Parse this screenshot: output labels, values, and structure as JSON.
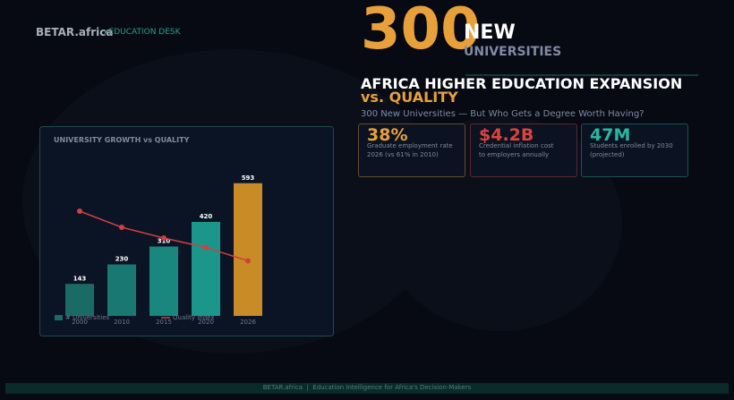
{
  "header": {
    "brand": "BETAR.africa",
    "desk": "▸EDUCATION DESK"
  },
  "hero": {
    "number": "300",
    "word": "NEW",
    "sub": "UNIVERSITIES"
  },
  "title": {
    "line1": "AFRICA HIGHER EDUCATION EXPANSION",
    "line2": "vs. QUALITY"
  },
  "subtitle": "300 New Universities — But Who Gets a Degree Worth Having?",
  "stats": [
    {
      "value": "38%",
      "label": "Graduate employment rate\n2026 (vs 61% in 2010)",
      "color": "#e8a03a"
    },
    {
      "value": "$4.2B",
      "label": "Credential inflation cost\nto employers annually",
      "color": "#d9443f"
    },
    {
      "value": "47M",
      "label": "Students enrolled by 2030\n(projected)",
      "color": "#2bb5a3"
    }
  ],
  "chart_data": {
    "type": "bar",
    "title": "UNIVERSITY GROWTH vs QUALITY",
    "categories": [
      "2000",
      "2010",
      "2015",
      "2020",
      "2026"
    ],
    "series": [
      {
        "name": "# Universities",
        "type": "bar",
        "values": [
          143,
          230,
          310,
          420,
          593
        ],
        "colors": [
          "#1a6b66",
          "#1a7872",
          "#1a877e",
          "#1a968b",
          "#c98b26"
        ]
      },
      {
        "name": "Quality Index",
        "type": "line",
        "color": "#d04040",
        "axis": "y2",
        "values": [
          78,
          66,
          58,
          51,
          41
        ]
      }
    ],
    "ylim": [
      0,
      600
    ],
    "y2lim": [
      0,
      100
    ]
  },
  "footer": "BETAR.africa  |  Education Intelligence for Africa's Decision-Makers"
}
